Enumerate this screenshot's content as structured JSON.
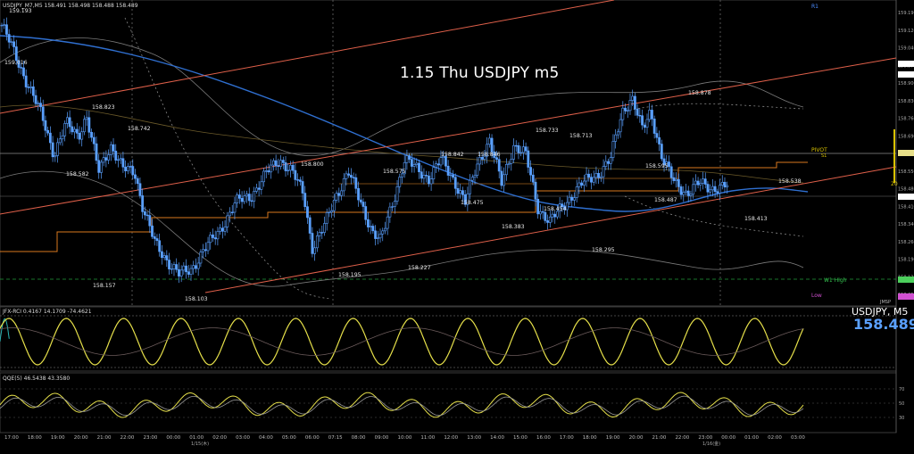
{
  "header": {
    "symbol_info": "USDJPY_M7,M5  158.491 158.498 158.488 158.489",
    "title": "1.15 Thu USDJPY m5",
    "symbol_period": "USDJPY, M5",
    "last_price": "158.489"
  },
  "indicators": {
    "rci_label": "JFX-RCI 0.4167 14.1709 -74.4621",
    "qqe_label": "QQE(5) 46.5438 43.3580"
  },
  "levels": {
    "r1": "R1",
    "pivot": "PIVOT",
    "s1": "S1",
    "w1_high": "W1 High",
    "low": "Low",
    "side_value": "20",
    "sub_tag": "JMSP"
  },
  "price_labels": [
    {
      "text": "159.193"
    },
    {
      "text": "159.016"
    },
    {
      "text": "158.823"
    },
    {
      "text": "158.742"
    },
    {
      "text": "158.582"
    },
    {
      "text": "158.157"
    },
    {
      "text": "158.103"
    },
    {
      "text": "158.800"
    },
    {
      "text": "158.575"
    },
    {
      "text": "158.195"
    },
    {
      "text": "158.227"
    },
    {
      "text": "158.842"
    },
    {
      "text": "158.846"
    },
    {
      "text": "158.475"
    },
    {
      "text": "158.733"
    },
    {
      "text": "158.713"
    },
    {
      "text": "158.383"
    },
    {
      "text": "158.454"
    },
    {
      "text": "158.295"
    },
    {
      "text": "158.595"
    },
    {
      "text": "158.487"
    },
    {
      "text": "158.878"
    },
    {
      "text": "158.538"
    },
    {
      "text": "158.413"
    }
  ],
  "colors": {
    "background": "#000000",
    "candle": "#5aa0ff",
    "ma_blue": "#2f6fd0",
    "trend_lines": "#e0604a",
    "pivot_orange": "#d9781e",
    "bollinger": "#8a8a8a",
    "rci_yellow": "#e6e04a",
    "rci_teal": "#2ab3b3",
    "qqe_yellow": "#e6e04a"
  },
  "chart_data": {
    "type": "candlestick",
    "title": "1.15 Thu USDJPY m5",
    "symbol": "USDJPY",
    "timeframe": "M5",
    "x_ticks": [
      "17:00",
      "18:00",
      "19:00",
      "20:00",
      "21:00",
      "22:00",
      "23:00",
      "00:00",
      "01:00",
      "02:00",
      "03:00",
      "04:00",
      "05:00",
      "06:00",
      "07:15",
      "08:00",
      "09:00",
      "10:00",
      "11:00",
      "12:00",
      "13:00",
      "14:00",
      "15:00",
      "16:00",
      "17:00",
      "18:00",
      "19:00",
      "20:00",
      "21:00",
      "22:00",
      "23:00",
      "00:00",
      "01:00",
      "02:00",
      "03:00"
    ],
    "date_labels": [
      "1/15(木)",
      "1/16(金)"
    ],
    "y_ticks": [
      "159.190",
      "159.120",
      "159.040",
      "158.970",
      "158.900",
      "158.830",
      "158.760",
      "158.690",
      "158.620",
      "158.550",
      "158.480",
      "158.410",
      "158.340",
      "158.260",
      "158.190",
      "158.120",
      "158.050"
    ],
    "y_range": [
      158.0,
      159.25
    ],
    "close_path": [
      {
        "x": 0,
        "y": 159.16
      },
      {
        "x": 0.015,
        "y": 159.05
      },
      {
        "x": 0.03,
        "y": 158.93
      },
      {
        "x": 0.05,
        "y": 158.78
      },
      {
        "x": 0.065,
        "y": 158.62
      },
      {
        "x": 0.08,
        "y": 158.75
      },
      {
        "x": 0.095,
        "y": 158.7
      },
      {
        "x": 0.105,
        "y": 158.78
      },
      {
        "x": 0.12,
        "y": 158.55
      },
      {
        "x": 0.135,
        "y": 158.66
      },
      {
        "x": 0.15,
        "y": 158.56
      },
      {
        "x": 0.165,
        "y": 158.55
      },
      {
        "x": 0.175,
        "y": 158.4
      },
      {
        "x": 0.19,
        "y": 158.25
      },
      {
        "x": 0.205,
        "y": 158.18
      },
      {
        "x": 0.22,
        "y": 158.12
      },
      {
        "x": 0.235,
        "y": 158.14
      },
      {
        "x": 0.25,
        "y": 158.22
      },
      {
        "x": 0.27,
        "y": 158.3
      },
      {
        "x": 0.29,
        "y": 158.42
      },
      {
        "x": 0.31,
        "y": 158.45
      },
      {
        "x": 0.33,
        "y": 158.55
      },
      {
        "x": 0.345,
        "y": 158.6
      },
      {
        "x": 0.36,
        "y": 158.55
      },
      {
        "x": 0.375,
        "y": 158.45
      },
      {
        "x": 0.385,
        "y": 158.23
      },
      {
        "x": 0.4,
        "y": 158.32
      },
      {
        "x": 0.415,
        "y": 158.45
      },
      {
        "x": 0.43,
        "y": 158.55
      },
      {
        "x": 0.445,
        "y": 158.42
      },
      {
        "x": 0.46,
        "y": 158.3
      },
      {
        "x": 0.47,
        "y": 158.26
      },
      {
        "x": 0.485,
        "y": 158.42
      },
      {
        "x": 0.5,
        "y": 158.6
      },
      {
        "x": 0.515,
        "y": 158.56
      },
      {
        "x": 0.53,
        "y": 158.52
      },
      {
        "x": 0.545,
        "y": 158.6
      },
      {
        "x": 0.56,
        "y": 158.52
      },
      {
        "x": 0.575,
        "y": 158.42
      },
      {
        "x": 0.59,
        "y": 158.58
      },
      {
        "x": 0.605,
        "y": 158.68
      },
      {
        "x": 0.62,
        "y": 158.5
      },
      {
        "x": 0.635,
        "y": 158.66
      },
      {
        "x": 0.65,
        "y": 158.62
      },
      {
        "x": 0.665,
        "y": 158.4
      },
      {
        "x": 0.68,
        "y": 158.34
      },
      {
        "x": 0.7,
        "y": 158.42
      },
      {
        "x": 0.72,
        "y": 158.5
      },
      {
        "x": 0.74,
        "y": 158.54
      },
      {
        "x": 0.755,
        "y": 158.6
      },
      {
        "x": 0.77,
        "y": 158.8
      },
      {
        "x": 0.782,
        "y": 158.86
      },
      {
        "x": 0.795,
        "y": 158.72
      },
      {
        "x": 0.805,
        "y": 158.8
      },
      {
        "x": 0.82,
        "y": 158.6
      },
      {
        "x": 0.835,
        "y": 158.5
      },
      {
        "x": 0.85,
        "y": 158.46
      },
      {
        "x": 0.865,
        "y": 158.5
      },
      {
        "x": 0.88,
        "y": 158.48
      },
      {
        "x": 0.9,
        "y": 158.49
      }
    ]
  }
}
